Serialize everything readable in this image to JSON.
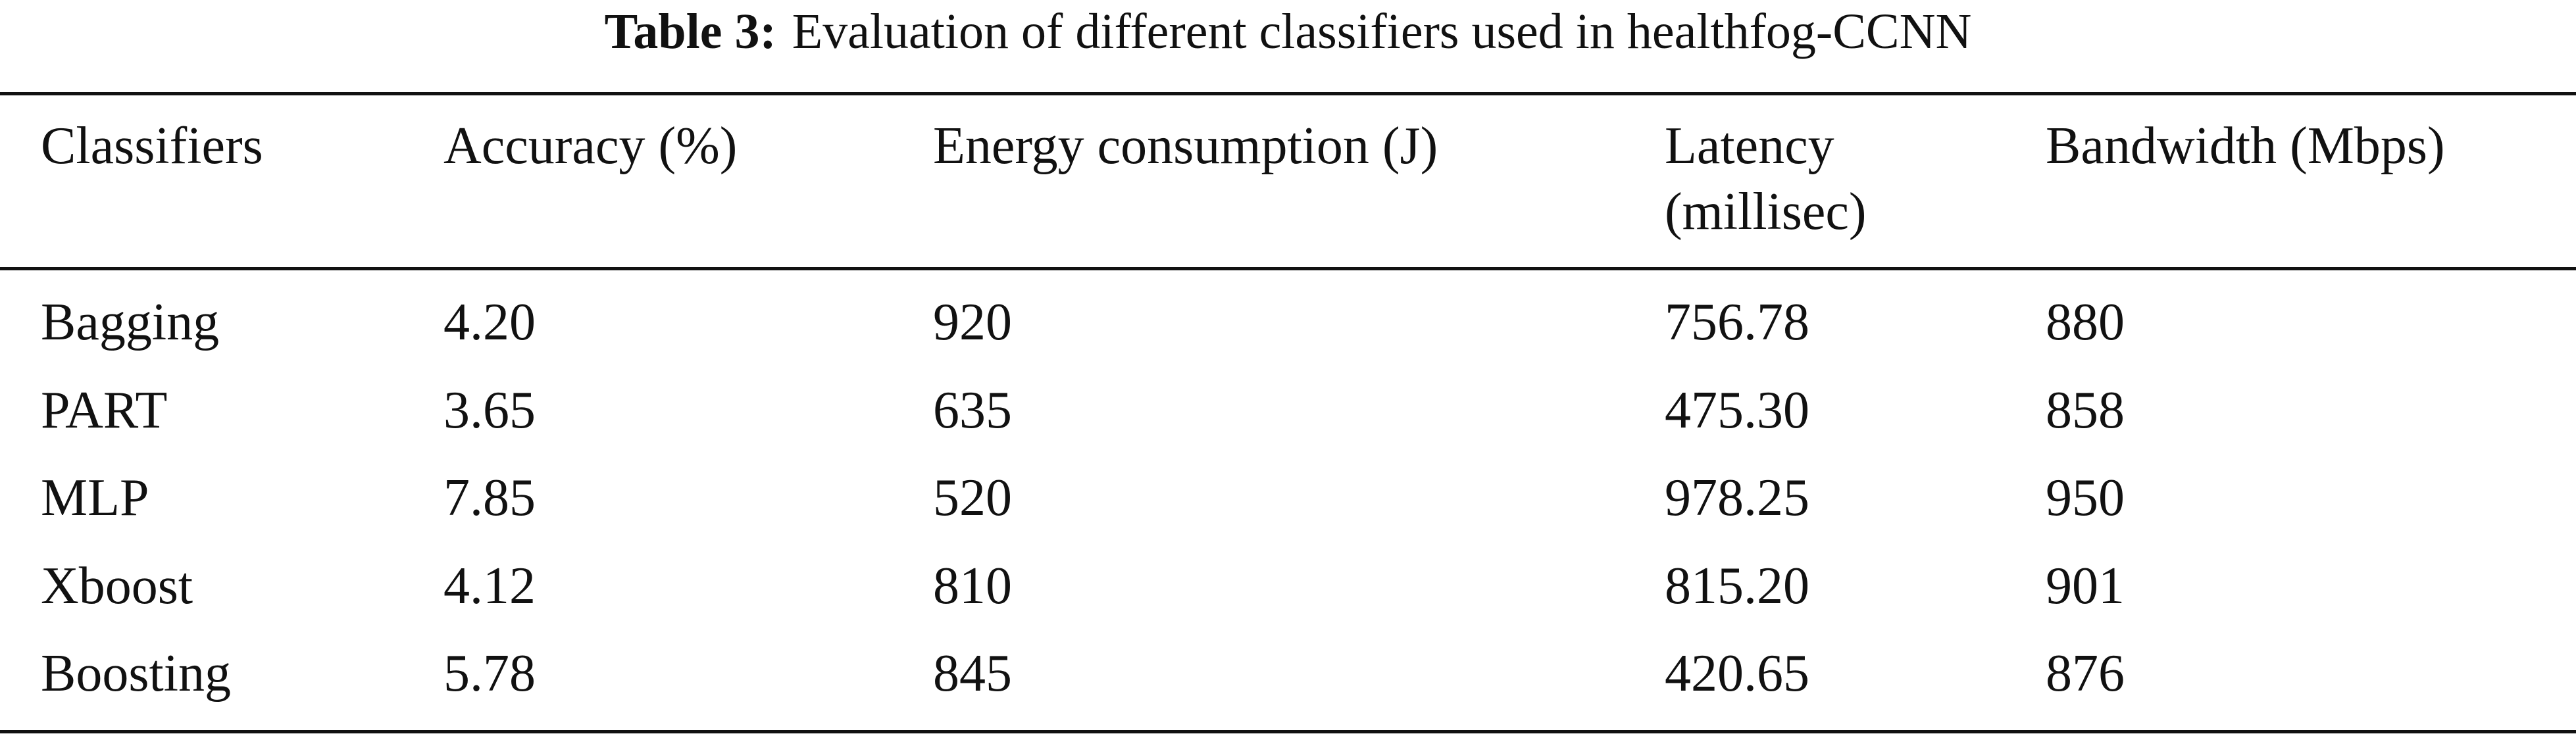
{
  "table": {
    "label": "Table 3:",
    "caption": "Evaluation of different classifiers used in healthfog-CCNN",
    "header": [
      "Classifiers",
      "Accuracy (%)",
      "Energy consumption (J)",
      "Latency (millisec)",
      "Bandwidth (Mbps)"
    ],
    "rows": [
      [
        "Bagging",
        "4.20",
        "920",
        "756.78",
        "880"
      ],
      [
        "PART",
        "3.65",
        "635",
        "475.30",
        "858"
      ],
      [
        "MLP",
        "7.85",
        "520",
        "978.25",
        "950"
      ],
      [
        "Xboost",
        "4.12",
        "810",
        "815.20",
        "901"
      ],
      [
        "Boosting",
        "5.78",
        "845",
        "420.65",
        "876"
      ]
    ]
  }
}
